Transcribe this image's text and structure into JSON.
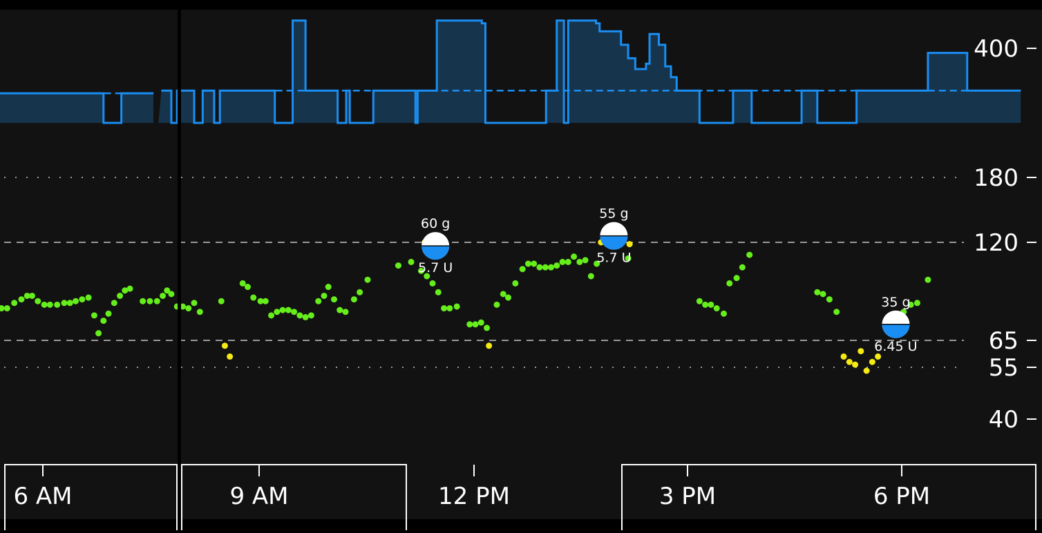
{
  "chart_data": {
    "type": "scatter",
    "title": "",
    "xlabel": "",
    "ylabel": "",
    "x_unit": "hours",
    "xlim": [
      5.0,
      19.7
    ],
    "ylim_glucose": [
      34,
      400
    ],
    "y_tick_labels": [
      "400",
      "180",
      "120",
      "65",
      "55",
      "40"
    ],
    "x_tick_labels": [
      "6 AM",
      "9 AM",
      "12 PM",
      "3 PM",
      "6 PM"
    ],
    "x_ticks": [
      6,
      9,
      12,
      15,
      18
    ],
    "target_range": [
      65,
      120
    ],
    "threshold_lines": [
      55,
      180
    ],
    "grid": false,
    "colors": {
      "background": "#121212",
      "in_range": "#66ee1c",
      "out_of_range": "#f5ea14",
      "basal_line": "#1a8ef2",
      "basal_fill": "#17344d",
      "bolus": "#1a8ef2",
      "threshold_line": "#9a9a9a"
    },
    "basal": {
      "scheduled_level": 0.6,
      "steps": [
        [
          5.0,
          0.0
        ],
        [
          5.07,
          0.55
        ],
        [
          5.2,
          0.0
        ],
        [
          5.3,
          0.55
        ],
        [
          6.85,
          0.0
        ],
        [
          7.1,
          0.55
        ],
        [
          7.6,
          0.55
        ],
        [
          8.2,
          0.55
        ],
        [
          8.25,
          0.0
        ],
        [
          8.3,
          0.55
        ],
        [
          8.5,
          0.0
        ],
        [
          8.65,
          0.55
        ],
        [
          8.8,
          0.0
        ],
        [
          8.9,
          0.55
        ],
        [
          9.0,
          0.6
        ],
        [
          9.25,
          0.0
        ],
        [
          9.5,
          0.6
        ],
        [
          9.5,
          1.9
        ],
        [
          9.7,
          0.6
        ],
        [
          10.1,
          0.0
        ],
        [
          10.25,
          0.6
        ],
        [
          10.3,
          0.0
        ],
        [
          10.65,
          0.6
        ],
        [
          11.0,
          0.0
        ],
        [
          11.25,
          0.6
        ],
        [
          12.05,
          1.9
        ],
        [
          12.55,
          1.85
        ],
        [
          12.55,
          1.85
        ],
        [
          12.05,
          1.9
        ],
        [
          12.05,
          1.9
        ],
        [
          11.25,
          0.6
        ],
        [
          11.25,
          0.6
        ],
        [
          11.25,
          0.6
        ],
        [
          11.25,
          0.6
        ],
        [
          11.25,
          0.6
        ],
        [
          11.25,
          0.6
        ]
      ]
    },
    "series": [
      {
        "name": "",
        "points": [
          [
            5.02,
            80
          ],
          [
            5.1,
            80
          ],
          [
            5.18,
            80
          ],
          [
            5.26,
            81
          ],
          [
            5.34,
            82
          ],
          [
            5.42,
            83
          ],
          [
            5.5,
            83
          ],
          [
            5.6,
            86
          ],
          [
            5.7,
            88
          ],
          [
            5.78,
            90
          ],
          [
            5.85,
            90
          ],
          [
            5.93,
            87
          ],
          [
            6.02,
            85
          ],
          [
            6.1,
            85
          ],
          [
            6.2,
            85
          ],
          [
            6.3,
            86
          ],
          [
            6.38,
            86
          ],
          [
            6.46,
            87
          ],
          [
            6.55,
            88
          ],
          [
            6.64,
            89
          ],
          [
            6.72,
            79
          ],
          [
            6.78,
            69
          ],
          [
            6.85,
            76
          ],
          [
            6.92,
            80
          ],
          [
            7.0,
            86
          ],
          [
            7.08,
            90
          ],
          [
            7.15,
            93
          ],
          [
            7.22,
            94
          ],
          [
            7.4,
            87
          ],
          [
            7.5,
            87
          ],
          [
            7.6,
            87
          ],
          [
            7.68,
            90
          ],
          [
            7.74,
            93
          ],
          [
            7.8,
            91
          ],
          [
            7.88,
            84
          ],
          [
            7.96,
            84
          ],
          [
            8.04,
            83
          ],
          [
            8.12,
            86
          ],
          [
            8.2,
            81
          ],
          [
            8.5,
            87
          ],
          [
            8.8,
            97
          ],
          [
            8.87,
            95
          ],
          [
            8.95,
            89
          ],
          [
            9.05,
            87
          ],
          [
            9.12,
            87
          ],
          [
            9.2,
            79
          ],
          [
            9.28,
            81
          ],
          [
            9.36,
            82
          ],
          [
            9.44,
            82
          ],
          [
            9.52,
            81
          ],
          [
            9.6,
            79
          ],
          [
            9.68,
            78
          ],
          [
            9.76,
            79
          ],
          [
            9.86,
            87
          ],
          [
            9.94,
            90
          ],
          [
            10.0,
            95
          ],
          [
            10.08,
            88
          ],
          [
            10.16,
            82
          ],
          [
            10.24,
            81
          ],
          [
            10.36,
            88
          ],
          [
            10.44,
            92
          ],
          [
            10.55,
            99
          ],
          [
            10.98,
            107
          ],
          [
            11.16,
            109
          ],
          [
            11.3,
            104
          ],
          [
            11.38,
            101
          ],
          [
            11.46,
            97
          ],
          [
            11.54,
            92
          ],
          [
            11.62,
            83
          ],
          [
            11.7,
            83
          ],
          [
            11.8,
            84
          ],
          [
            11.98,
            74
          ],
          [
            12.06,
            74
          ],
          [
            12.14,
            75
          ],
          [
            12.22,
            72
          ],
          [
            12.36,
            85
          ],
          [
            12.45,
            91
          ],
          [
            12.52,
            89
          ],
          [
            12.62,
            97
          ],
          [
            12.72,
            105
          ],
          [
            12.8,
            108
          ],
          [
            12.88,
            108
          ],
          [
            12.96,
            106
          ],
          [
            13.04,
            106
          ],
          [
            13.12,
            106
          ],
          [
            13.2,
            107
          ],
          [
            13.28,
            109
          ],
          [
            13.36,
            109
          ],
          [
            13.44,
            112
          ],
          [
            13.52,
            109
          ],
          [
            13.6,
            110
          ],
          [
            13.68,
            101
          ],
          [
            13.76,
            108
          ],
          [
            14.2,
            111
          ],
          [
            15.2,
            87
          ],
          [
            15.28,
            85
          ],
          [
            15.36,
            85
          ],
          [
            15.44,
            83
          ],
          [
            15.54,
            80
          ],
          [
            15.62,
            97
          ],
          [
            15.72,
            100
          ],
          [
            15.8,
            106
          ],
          [
            15.9,
            113
          ],
          [
            16.85,
            92
          ],
          [
            16.93,
            91
          ],
          [
            17.02,
            88
          ],
          [
            17.12,
            81
          ],
          [
            17.95,
            78
          ],
          [
            18.06,
            81
          ],
          [
            18.16,
            85
          ],
          [
            18.25,
            86
          ],
          [
            18.4,
            99
          ]
        ],
        "color_key": "in_range"
      },
      {
        "name": "",
        "points": [
          [
            8.55,
            63
          ],
          [
            8.62,
            59
          ],
          [
            11.35,
            120
          ],
          [
            12.25,
            63
          ],
          [
            13.82,
            120
          ],
          [
            13.9,
            122
          ],
          [
            13.98,
            123
          ],
          [
            14.06,
            121
          ],
          [
            14.14,
            125
          ],
          [
            14.22,
            119
          ],
          [
            17.22,
            59
          ],
          [
            17.3,
            57
          ],
          [
            17.38,
            56
          ],
          [
            17.46,
            61
          ],
          [
            17.54,
            54
          ],
          [
            17.62,
            57
          ],
          [
            17.7,
            59
          ]
        ],
        "color_key": "out_of_range"
      }
    ],
    "meals": [
      {
        "x": 11.5,
        "y": 118,
        "carbs": "60 g",
        "insulin": "5.7 U"
      },
      {
        "x": 14.0,
        "y": 126,
        "carbs": "55 g",
        "insulin": "5.7 U"
      },
      {
        "x": 17.95,
        "y": 74,
        "carbs": "35 g",
        "insulin": "6.45 U"
      }
    ]
  }
}
